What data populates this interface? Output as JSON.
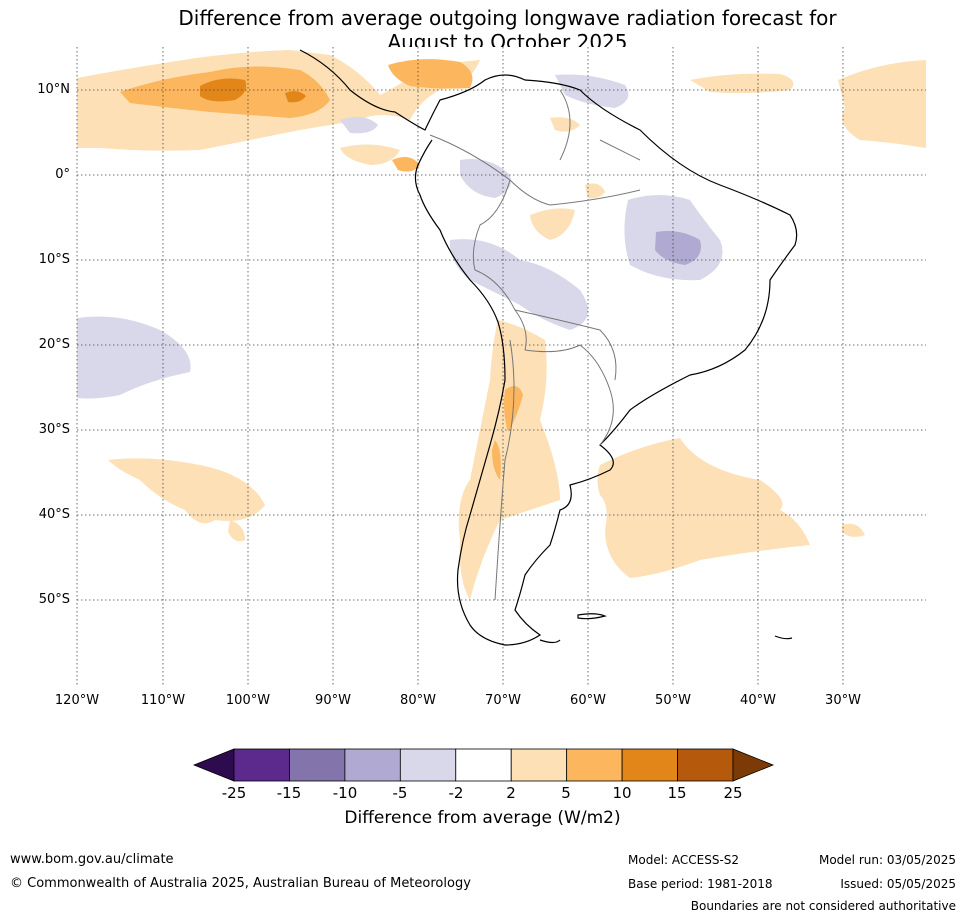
{
  "title_line1": "Difference from average outgoing longwave radiation forecast for",
  "title_line2": "August to October 2025",
  "lat_labels": [
    "10°N",
    "0°",
    "10°S",
    "20°S",
    "30°S",
    "40°S",
    "50°S"
  ],
  "lon_labels": [
    "120°W",
    "110°W",
    "100°W",
    "90°W",
    "80°W",
    "70°W",
    "60°W",
    "50°W",
    "40°W",
    "30°W"
  ],
  "colorbar": {
    "ticks": [
      "-25",
      "-15",
      "-10",
      "-5",
      "-2",
      "2",
      "5",
      "10",
      "15",
      "25"
    ],
    "colors": [
      "#2d0b4e",
      "#5b2a8c",
      "#8474ac",
      "#b0a9d1",
      "#d8d8ea",
      "#ffffff",
      "#fde0b5",
      "#fbb65e",
      "#e2861a",
      "#b55a0c",
      "#7c3a06"
    ],
    "label": "Difference from average (W/m2)"
  },
  "footer": {
    "website": "www.bom.gov.au/climate",
    "copyright": "© Commonwealth of Australia 2025, Australian Bureau of Meteorology",
    "model": "Model: ACCESS-S2",
    "base_period": "Base period: 1981-2018",
    "model_run": "Model run: 03/05/2025",
    "issued": "Issued: 05/05/2025",
    "disclaimer": "Boundaries are not considered authoritative"
  }
}
